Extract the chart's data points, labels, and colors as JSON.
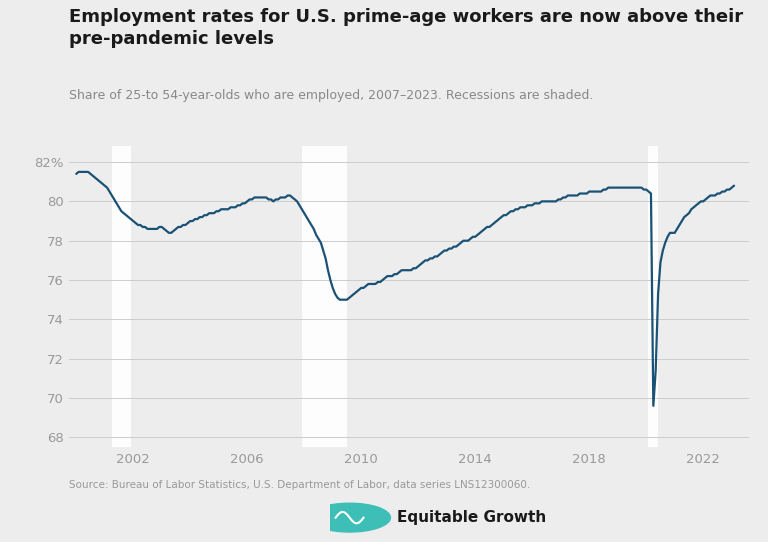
{
  "title": "Employment rates for U.S. prime-age workers are now above their\npre-pandemic levels",
  "subtitle": "Share of 25-to 54-year-olds who are employed, 2007–2023. Recessions are shaded.",
  "source": "Source: Bureau of Labor Statistics, U.S. Department of Labor, data series LNS12300060.",
  "line_color": "#1a5276",
  "background_color": "#ededed",
  "plot_background_color": "#ededed",
  "recession_color": "#ffffff",
  "recession_alpha": 0.9,
  "recessions": [
    {
      "start": 2001.25,
      "end": 2001.92
    },
    {
      "start": 2007.917,
      "end": 2009.5
    },
    {
      "start": 2020.08,
      "end": 2020.42
    }
  ],
  "ylim": [
    67.5,
    82.8
  ],
  "yticks": [
    68,
    70,
    72,
    74,
    76,
    78,
    80,
    82
  ],
  "ytick_labels": [
    "68",
    "70",
    "72",
    "74",
    "76",
    "78",
    "80",
    "82%"
  ],
  "xtick_years": [
    2002,
    2006,
    2010,
    2014,
    2018,
    2022
  ],
  "data": {
    "dates": [
      2000.0,
      2000.083,
      2000.167,
      2000.25,
      2000.333,
      2000.417,
      2000.5,
      2000.583,
      2000.667,
      2000.75,
      2000.833,
      2000.917,
      2001.0,
      2001.083,
      2001.167,
      2001.25,
      2001.333,
      2001.417,
      2001.5,
      2001.583,
      2001.667,
      2001.75,
      2001.833,
      2001.917,
      2002.0,
      2002.083,
      2002.167,
      2002.25,
      2002.333,
      2002.417,
      2002.5,
      2002.583,
      2002.667,
      2002.75,
      2002.833,
      2002.917,
      2003.0,
      2003.083,
      2003.167,
      2003.25,
      2003.333,
      2003.417,
      2003.5,
      2003.583,
      2003.667,
      2003.75,
      2003.833,
      2003.917,
      2004.0,
      2004.083,
      2004.167,
      2004.25,
      2004.333,
      2004.417,
      2004.5,
      2004.583,
      2004.667,
      2004.75,
      2004.833,
      2004.917,
      2005.0,
      2005.083,
      2005.167,
      2005.25,
      2005.333,
      2005.417,
      2005.5,
      2005.583,
      2005.667,
      2005.75,
      2005.833,
      2005.917,
      2006.0,
      2006.083,
      2006.167,
      2006.25,
      2006.333,
      2006.417,
      2006.5,
      2006.583,
      2006.667,
      2006.75,
      2006.833,
      2006.917,
      2007.0,
      2007.083,
      2007.167,
      2007.25,
      2007.333,
      2007.417,
      2007.5,
      2007.583,
      2007.667,
      2007.75,
      2007.833,
      2007.917,
      2008.0,
      2008.083,
      2008.167,
      2008.25,
      2008.333,
      2008.417,
      2008.5,
      2008.583,
      2008.667,
      2008.75,
      2008.833,
      2008.917,
      2009.0,
      2009.083,
      2009.167,
      2009.25,
      2009.333,
      2009.417,
      2009.5,
      2009.583,
      2009.667,
      2009.75,
      2009.833,
      2009.917,
      2010.0,
      2010.083,
      2010.167,
      2010.25,
      2010.333,
      2010.417,
      2010.5,
      2010.583,
      2010.667,
      2010.75,
      2010.833,
      2010.917,
      2011.0,
      2011.083,
      2011.167,
      2011.25,
      2011.333,
      2011.417,
      2011.5,
      2011.583,
      2011.667,
      2011.75,
      2011.833,
      2011.917,
      2012.0,
      2012.083,
      2012.167,
      2012.25,
      2012.333,
      2012.417,
      2012.5,
      2012.583,
      2012.667,
      2012.75,
      2012.833,
      2012.917,
      2013.0,
      2013.083,
      2013.167,
      2013.25,
      2013.333,
      2013.417,
      2013.5,
      2013.583,
      2013.667,
      2013.75,
      2013.833,
      2013.917,
      2014.0,
      2014.083,
      2014.167,
      2014.25,
      2014.333,
      2014.417,
      2014.5,
      2014.583,
      2014.667,
      2014.75,
      2014.833,
      2014.917,
      2015.0,
      2015.083,
      2015.167,
      2015.25,
      2015.333,
      2015.417,
      2015.5,
      2015.583,
      2015.667,
      2015.75,
      2015.833,
      2015.917,
      2016.0,
      2016.083,
      2016.167,
      2016.25,
      2016.333,
      2016.417,
      2016.5,
      2016.583,
      2016.667,
      2016.75,
      2016.833,
      2016.917,
      2017.0,
      2017.083,
      2017.167,
      2017.25,
      2017.333,
      2017.417,
      2017.5,
      2017.583,
      2017.667,
      2017.75,
      2017.833,
      2017.917,
      2018.0,
      2018.083,
      2018.167,
      2018.25,
      2018.333,
      2018.417,
      2018.5,
      2018.583,
      2018.667,
      2018.75,
      2018.833,
      2018.917,
      2019.0,
      2019.083,
      2019.167,
      2019.25,
      2019.333,
      2019.417,
      2019.5,
      2019.583,
      2019.667,
      2019.75,
      2019.833,
      2019.917,
      2020.0,
      2020.083,
      2020.167,
      2020.25,
      2020.333,
      2020.417,
      2020.5,
      2020.583,
      2020.667,
      2020.75,
      2020.833,
      2020.917,
      2021.0,
      2021.083,
      2021.167,
      2021.25,
      2021.333,
      2021.417,
      2021.5,
      2021.583,
      2021.667,
      2021.75,
      2021.833,
      2021.917,
      2022.0,
      2022.083,
      2022.167,
      2022.25,
      2022.333,
      2022.417,
      2022.5,
      2022.583,
      2022.667,
      2022.75,
      2022.833,
      2022.917,
      2023.0,
      2023.083
    ],
    "values": [
      81.4,
      81.5,
      81.5,
      81.5,
      81.5,
      81.5,
      81.4,
      81.3,
      81.2,
      81.1,
      81.0,
      80.9,
      80.8,
      80.7,
      80.5,
      80.3,
      80.1,
      79.9,
      79.7,
      79.5,
      79.4,
      79.3,
      79.2,
      79.1,
      79.0,
      78.9,
      78.8,
      78.8,
      78.7,
      78.7,
      78.6,
      78.6,
      78.6,
      78.6,
      78.6,
      78.7,
      78.7,
      78.6,
      78.5,
      78.4,
      78.4,
      78.5,
      78.6,
      78.7,
      78.7,
      78.8,
      78.8,
      78.9,
      79.0,
      79.0,
      79.1,
      79.1,
      79.2,
      79.2,
      79.3,
      79.3,
      79.4,
      79.4,
      79.4,
      79.5,
      79.5,
      79.6,
      79.6,
      79.6,
      79.6,
      79.7,
      79.7,
      79.7,
      79.8,
      79.8,
      79.9,
      79.9,
      80.0,
      80.1,
      80.1,
      80.2,
      80.2,
      80.2,
      80.2,
      80.2,
      80.2,
      80.1,
      80.1,
      80.0,
      80.1,
      80.1,
      80.2,
      80.2,
      80.2,
      80.3,
      80.3,
      80.2,
      80.1,
      80.0,
      79.8,
      79.6,
      79.4,
      79.2,
      79.0,
      78.8,
      78.6,
      78.3,
      78.1,
      77.9,
      77.5,
      77.1,
      76.5,
      76.0,
      75.6,
      75.3,
      75.1,
      75.0,
      75.0,
      75.0,
      75.0,
      75.1,
      75.2,
      75.3,
      75.4,
      75.5,
      75.6,
      75.6,
      75.7,
      75.8,
      75.8,
      75.8,
      75.8,
      75.9,
      75.9,
      76.0,
      76.1,
      76.2,
      76.2,
      76.2,
      76.3,
      76.3,
      76.4,
      76.5,
      76.5,
      76.5,
      76.5,
      76.5,
      76.6,
      76.6,
      76.7,
      76.8,
      76.9,
      77.0,
      77.0,
      77.1,
      77.1,
      77.2,
      77.2,
      77.3,
      77.4,
      77.5,
      77.5,
      77.6,
      77.6,
      77.7,
      77.7,
      77.8,
      77.9,
      78.0,
      78.0,
      78.0,
      78.1,
      78.2,
      78.2,
      78.3,
      78.4,
      78.5,
      78.6,
      78.7,
      78.7,
      78.8,
      78.9,
      79.0,
      79.1,
      79.2,
      79.3,
      79.3,
      79.4,
      79.5,
      79.5,
      79.6,
      79.6,
      79.7,
      79.7,
      79.7,
      79.8,
      79.8,
      79.8,
      79.9,
      79.9,
      79.9,
      80.0,
      80.0,
      80.0,
      80.0,
      80.0,
      80.0,
      80.0,
      80.1,
      80.1,
      80.2,
      80.2,
      80.3,
      80.3,
      80.3,
      80.3,
      80.3,
      80.4,
      80.4,
      80.4,
      80.4,
      80.5,
      80.5,
      80.5,
      80.5,
      80.5,
      80.5,
      80.6,
      80.6,
      80.7,
      80.7,
      80.7,
      80.7,
      80.7,
      80.7,
      80.7,
      80.7,
      80.7,
      80.7,
      80.7,
      80.7,
      80.7,
      80.7,
      80.7,
      80.6,
      80.6,
      80.5,
      80.4,
      69.6,
      71.4,
      75.3,
      76.9,
      77.5,
      77.9,
      78.2,
      78.4,
      78.4,
      78.4,
      78.6,
      78.8,
      79.0,
      79.2,
      79.3,
      79.4,
      79.6,
      79.7,
      79.8,
      79.9,
      80.0,
      80.0,
      80.1,
      80.2,
      80.3,
      80.3,
      80.3,
      80.4,
      80.4,
      80.5,
      80.5,
      80.6,
      80.6,
      80.7,
      80.8
    ]
  },
  "xlim_start": 1999.75,
  "xlim_end": 2023.6
}
